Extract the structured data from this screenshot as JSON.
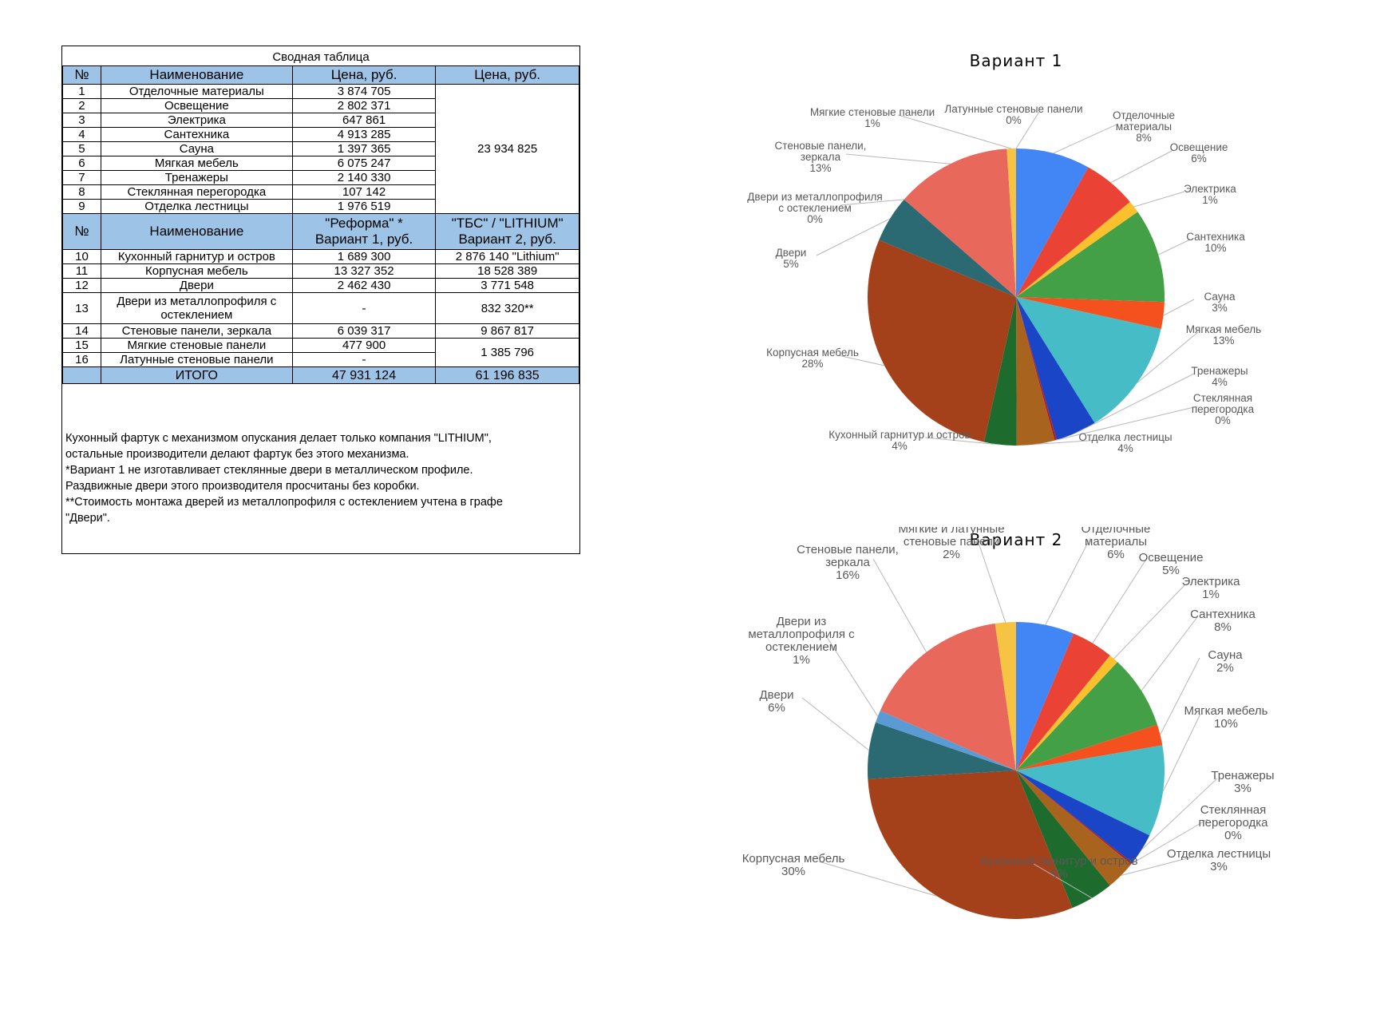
{
  "table": {
    "title": "Сводная таблица",
    "header1": {
      "num": "№",
      "name": "Наименование",
      "price": "Цена, руб.",
      "price2": "Цена, руб."
    },
    "group1_rows": [
      {
        "num": "1",
        "name": "Отделочные материалы",
        "price": "3 874 705"
      },
      {
        "num": "2",
        "name": "Освещение",
        "price": "2 802 371"
      },
      {
        "num": "3",
        "name": "Электрика",
        "price": "647 861"
      },
      {
        "num": "4",
        "name": "Сантехника",
        "price": "4 913 285"
      },
      {
        "num": "5",
        "name": "Сауна",
        "price": "1 397 365"
      },
      {
        "num": "6",
        "name": "Мягкая мебель",
        "price": "6 075 247"
      },
      {
        "num": "7",
        "name": "Тренажеры",
        "price": "2 140 330"
      },
      {
        "num": "8",
        "name": "Стеклянная перегородка",
        "price": "107 142"
      },
      {
        "num": "9",
        "name": "Отделка лестницы",
        "price": "1 976 519"
      }
    ],
    "group1_total": "23 934 825",
    "header2": {
      "num": "№",
      "name": "Наименование",
      "v1_line1": "\"Реформа\" *",
      "v1_line2": "Вариант 1, руб.",
      "v2_line1": "\"ТБС\" / \"LITHIUM\"",
      "v2_line2": "Вариант 2, руб."
    },
    "group2_rows": [
      {
        "num": "10",
        "name": "Кухонный гарнитур и остров",
        "v1": "1 689 300",
        "v2": "2 876 140 \"Lithium\""
      },
      {
        "num": "11",
        "name": "Корпусная мебель",
        "v1": "13 327 352",
        "v2": "18 528 389"
      },
      {
        "num": "12",
        "name": "Двери",
        "v1": "2 462 430",
        "v2": "3 771 548"
      },
      {
        "num": "13",
        "name_line1": "Двери из металлопрофиля с",
        "name_line2": "остеклением",
        "v1": "-",
        "v2": "832 320**"
      },
      {
        "num": "14",
        "name": "Стеновые панели, зеркала",
        "v1": "6 039 317",
        "v2": "9 867 817"
      },
      {
        "num": "15",
        "name": "Мягкие стеновые панели",
        "v1": "477 900"
      },
      {
        "num": "16",
        "name": "Латунные стеновые панели",
        "v1": "-"
      }
    ],
    "merged_15_16_v2": "1 385 796",
    "total": {
      "label": "ИТОГО",
      "v1": "47 931 124",
      "v2": "61 196 835"
    }
  },
  "notes": [
    "Кухонный фартук с механизмом опускания делает только компания \"LITHIUM\",",
    "остальные производители делают фартук без этого механизма.",
    "*Вариант 1 не изготавливает стеклянные двери в металлическом профиле.",
    "Раздвижные двери этого производителя просчитаны без коробки.",
    "**Стоимость монтажа дверей из металлопрофиля с остеклением учтена в графе",
    "\"Двери\"."
  ],
  "chart_data": [
    {
      "type": "pie",
      "title": "Вариант 1",
      "slices": [
        {
          "label": "Отделочные материалы",
          "label_lines": [
            "Отделочные",
            "материалы"
          ],
          "pct_label": "8%",
          "value": 3874705,
          "color": "#4285f4"
        },
        {
          "label": "Освещение",
          "label_lines": [
            "Освещение"
          ],
          "pct_label": "6%",
          "value": 2802371,
          "color": "#ea4335"
        },
        {
          "label": "Электрика",
          "label_lines": [
            "Электрика"
          ],
          "pct_label": "1%",
          "value": 647861,
          "color": "#fbc02d"
        },
        {
          "label": "Сантехника",
          "label_lines": [
            "Сантехника"
          ],
          "pct_label": "10%",
          "value": 4913285,
          "color": "#43a047"
        },
        {
          "label": "Сауна",
          "label_lines": [
            "Сауна"
          ],
          "pct_label": "3%",
          "value": 1397365,
          "color": "#f4511e"
        },
        {
          "label": "Мягкая мебель",
          "label_lines": [
            "Мягкая мебель"
          ],
          "pct_label": "13%",
          "value": 6075247,
          "color": "#46bdc6"
        },
        {
          "label": "Тренажеры",
          "label_lines": [
            "Тренажеры"
          ],
          "pct_label": "4%",
          "value": 2140330,
          "color": "#1a45c7"
        },
        {
          "label": "Стеклянная перегородка",
          "label_lines": [
            "Стеклянная",
            "перегородка"
          ],
          "pct_label": "0%",
          "value": 107142,
          "color": "#b71c1c"
        },
        {
          "label": "Отделка лестницы",
          "label_lines": [
            "Отделка лестницы"
          ],
          "pct_label": "4%",
          "value": 1976519,
          "color": "#a8631e"
        },
        {
          "label": "Кухонный гарнитур и остров",
          "label_lines": [
            "Кухонный гарнитур и остров"
          ],
          "pct_label": "4%",
          "value": 1689300,
          "color": "#1e6b2e"
        },
        {
          "label": "Корпусная мебель",
          "label_lines": [
            "Корпусная мебель"
          ],
          "pct_label": "28%",
          "value": 13327352,
          "color": "#a5411a"
        },
        {
          "label": "Двери",
          "label_lines": [
            "Двери"
          ],
          "pct_label": "5%",
          "value": 2462430,
          "color": "#2c6a73"
        },
        {
          "label": "Двери из металлопрофиля с остеклением",
          "label_lines": [
            "Двери из металлопрофиля",
            "с остеклением"
          ],
          "pct_label": "0%",
          "value": 0,
          "color": "#5b9bd5"
        },
        {
          "label": "Стеновые панели, зеркала",
          "label_lines": [
            "Стеновые панели,",
            "зеркала"
          ],
          "pct_label": "13%",
          "value": 6039317,
          "color": "#e8695c"
        },
        {
          "label": "Мягкие стеновые панели",
          "label_lines": [
            "Мягкие стеновые панели"
          ],
          "pct_label": "1%",
          "value": 477900,
          "color": "#f6c342"
        },
        {
          "label": "Латунные стеновые панели",
          "label_lines": [
            "Латунные стеновые панели"
          ],
          "pct_label": "0%",
          "value": 0,
          "color": "#9e9e9e"
        }
      ]
    },
    {
      "type": "pie",
      "title": "Вариант 2",
      "slices": [
        {
          "label": "Отделочные материалы",
          "label_lines": [
            "Отделочные",
            "материалы"
          ],
          "pct_label": "6%",
          "value": 3874705,
          "color": "#4285f4"
        },
        {
          "label": "Освещение",
          "label_lines": [
            "Освещение"
          ],
          "pct_label": "5%",
          "value": 2802371,
          "color": "#ea4335"
        },
        {
          "label": "Электрика",
          "label_lines": [
            "Электрика"
          ],
          "pct_label": "1%",
          "value": 647861,
          "color": "#fbc02d"
        },
        {
          "label": "Сантехника",
          "label_lines": [
            "Сантехника"
          ],
          "pct_label": "8%",
          "value": 4913285,
          "color": "#43a047"
        },
        {
          "label": "Сауна",
          "label_lines": [
            "Сауна"
          ],
          "pct_label": "2%",
          "value": 1397365,
          "color": "#f4511e"
        },
        {
          "label": "Мягкая мебель",
          "label_lines": [
            "Мягкая мебель"
          ],
          "pct_label": "10%",
          "value": 6075247,
          "color": "#46bdc6"
        },
        {
          "label": "Тренажеры",
          "label_lines": [
            "Тренажеры"
          ],
          "pct_label": "3%",
          "value": 2140330,
          "color": "#1a45c7"
        },
        {
          "label": "Стеклянная перегородка",
          "label_lines": [
            "Стеклянная",
            "перегородка"
          ],
          "pct_label": "0%",
          "value": 107142,
          "color": "#b71c1c"
        },
        {
          "label": "Отделка лестницы",
          "label_lines": [
            "Отделка лестницы"
          ],
          "pct_label": "3%",
          "value": 1976519,
          "color": "#a8631e"
        },
        {
          "label": "Кухонный гарнитур и остров",
          "label_lines": [
            "Кухонный гарнитур и остров"
          ],
          "pct_label": "5%",
          "value": 2876140,
          "color": "#1e6b2e"
        },
        {
          "label": "Корпусная мебель",
          "label_lines": [
            "Корпусная мебель"
          ],
          "pct_label": "30%",
          "value": 18528389,
          "color": "#a5411a"
        },
        {
          "label": "Двери",
          "label_lines": [
            "Двери"
          ],
          "pct_label": "6%",
          "value": 3771548,
          "color": "#2c6a73"
        },
        {
          "label": "Двери из металлопрофиля с остеклением",
          "label_lines": [
            "Двери из",
            "металлопрофиля с",
            "остеклением"
          ],
          "pct_label": "1%",
          "value": 832320,
          "color": "#5b9bd5"
        },
        {
          "label": "Стеновые панели, зеркала",
          "label_lines": [
            "Стеновые панели,",
            "зеркала"
          ],
          "pct_label": "16%",
          "value": 9867817,
          "color": "#e8695c"
        },
        {
          "label": "Мягкие и латунные стеновые панели",
          "label_lines": [
            "Мягкие и латунные",
            "стеновые панели"
          ],
          "pct_label": "2%",
          "value": 1385796,
          "color": "#f6c342"
        }
      ]
    }
  ]
}
